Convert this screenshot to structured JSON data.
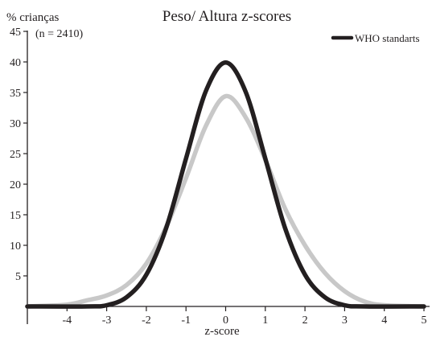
{
  "chart_data": {
    "type": "line",
    "title": "Peso/ Altura z-scores",
    "ylabel": "% crianças",
    "note": "(n = 2410)",
    "xlabel": "z-score",
    "xlim": [
      -5,
      5
    ],
    "ylim": [
      0,
      45
    ],
    "xticks": [
      -4,
      -3,
      -2,
      -1,
      0,
      1,
      2,
      3,
      4,
      5
    ],
    "xtick_labels": [
      "-4",
      "-3",
      "-2",
      "-1",
      "0",
      "1",
      "2",
      "3",
      "4",
      "5"
    ],
    "yticks": [
      5,
      10,
      15,
      20,
      25,
      30,
      35,
      40,
      45
    ],
    "ytick_labels": [
      "5",
      "10",
      "15",
      "20",
      "25",
      "30",
      "35",
      "40",
      "45"
    ],
    "grid": false,
    "legend_position": "top-right",
    "series": [
      {
        "id": "sample",
        "color": "#c8c8c8",
        "x": [
          -5,
          -4,
          -3.5,
          -3,
          -2.5,
          -2,
          -1.5,
          -1,
          -0.5,
          0,
          0.5,
          1,
          1.5,
          2,
          2.5,
          3,
          3.5,
          4,
          5
        ],
        "y": [
          0,
          0.3,
          1.0,
          1.8,
          3.5,
          7,
          13,
          21,
          29.5,
          34.4,
          31,
          24,
          16,
          10,
          5.5,
          2.5,
          0.8,
          0.2,
          0
        ]
      },
      {
        "id": "who",
        "name": "WHO standarts",
        "color": "#231f20",
        "x": [
          -5,
          -3.5,
          -3,
          -2.5,
          -2,
          -1.5,
          -1,
          -0.5,
          0,
          0.5,
          1,
          1.5,
          2,
          2.5,
          3,
          3.5,
          5
        ],
        "y": [
          0,
          0,
          0.2,
          1.5,
          5.2,
          12.8,
          24.2,
          35.2,
          39.9,
          35.2,
          24.2,
          12.8,
          5.2,
          1.5,
          0.2,
          0,
          0
        ]
      }
    ]
  }
}
